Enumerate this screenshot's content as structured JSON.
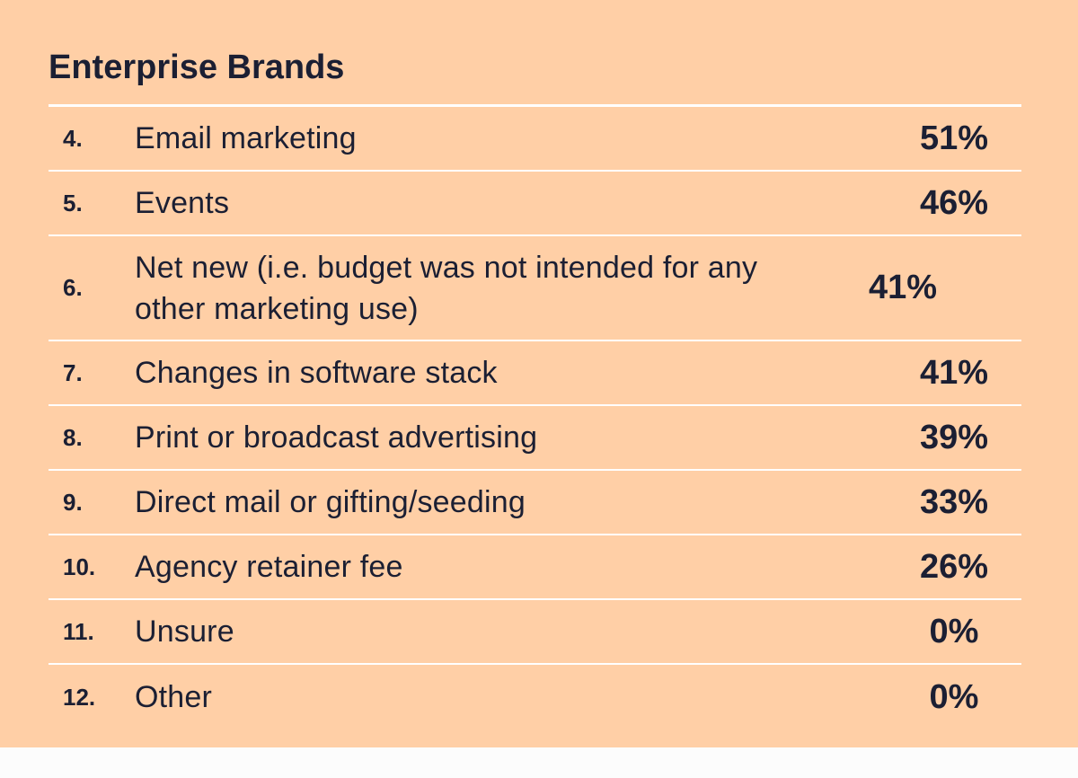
{
  "title": "Enterprise Brands",
  "rows": [
    {
      "rank": "4.",
      "label": "Email marketing",
      "value": "51%"
    },
    {
      "rank": "5.",
      "label": "Events",
      "value": "46%"
    },
    {
      "rank": "6.",
      "label": "Net new (i.e. budget was not intended for any other marketing use)",
      "value": "41%"
    },
    {
      "rank": "7.",
      "label": "Changes in software stack",
      "value": "41%"
    },
    {
      "rank": "8.",
      "label": "Print or broadcast advertising",
      "value": "39%"
    },
    {
      "rank": "9.",
      "label": "Direct mail or gifting/seeding",
      "value": "33%"
    },
    {
      "rank": "10.",
      "label": "Agency retainer fee",
      "value": "26%"
    },
    {
      "rank": "11.",
      "label": "Unsure",
      "value": "0%"
    },
    {
      "rank": "12.",
      "label": "Other",
      "value": "0%"
    }
  ]
}
